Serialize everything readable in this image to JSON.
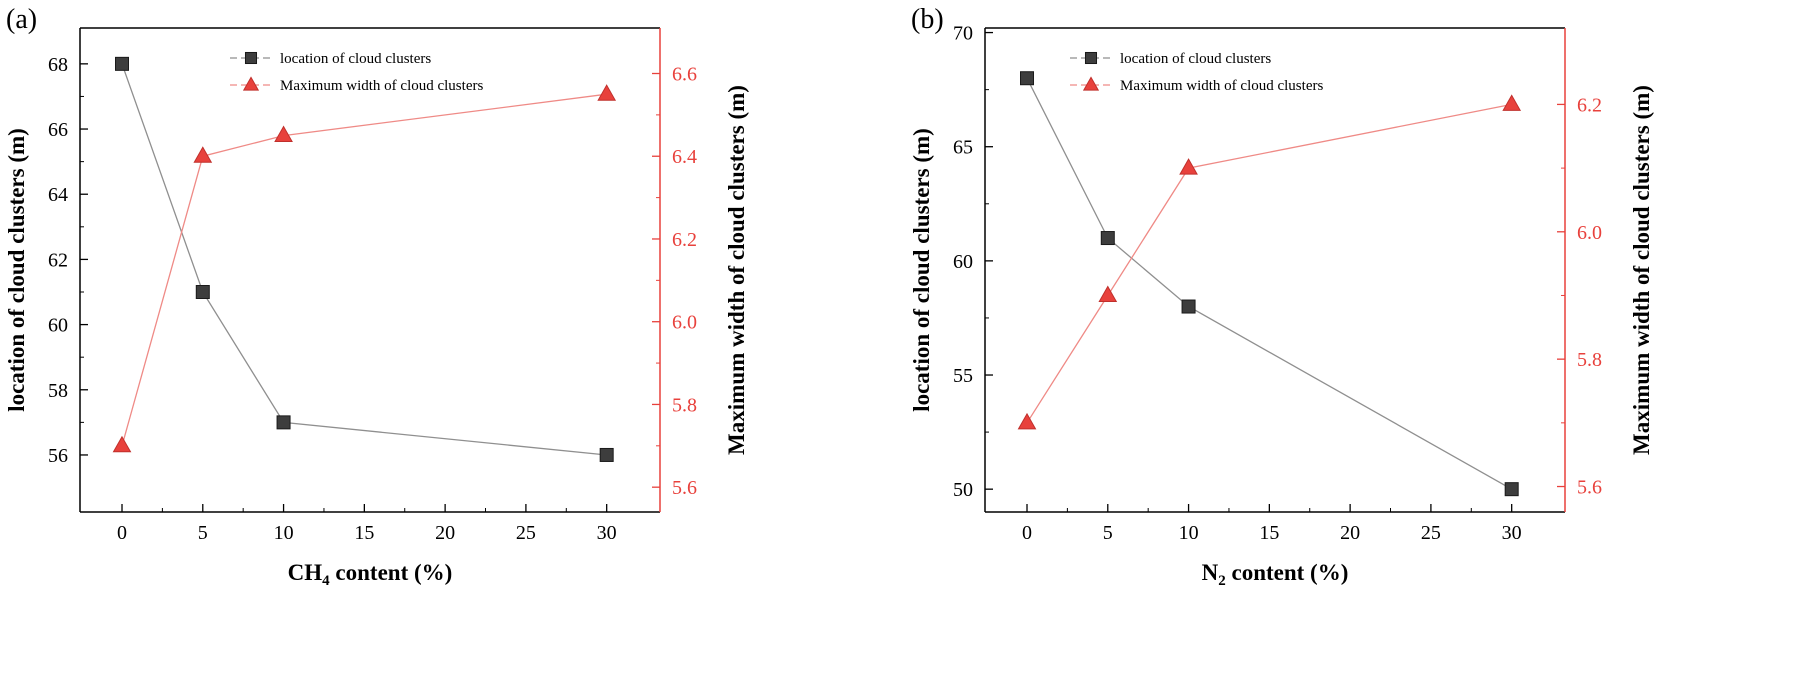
{
  "figure": {
    "background": "#ffffff",
    "series_black": "#3d3d3d",
    "series_red": "#e8413c"
  },
  "chart_data": [
    {
      "type": "line",
      "panel_label": "(a)",
      "x": [
        0,
        5,
        10,
        30
      ],
      "x_ticks": [
        0,
        5,
        10,
        15,
        20,
        25,
        30
      ],
      "xlim": [
        -2.6,
        33.3
      ],
      "xlabel": {
        "base": "CH",
        "sub": "4",
        "rest": " content (%)"
      },
      "grid": false,
      "legend_position": "top-center",
      "axes": {
        "left": {
          "label": "location of cloud clusters (m)",
          "ticks": [
            56,
            58,
            60,
            62,
            64,
            66,
            68
          ],
          "lim": [
            54.25,
            69.1
          ],
          "decimals": 0,
          "color": "#000000"
        },
        "right": {
          "label": "Maximum width of cloud clusters (m)",
          "ticks": [
            5.6,
            5.8,
            6.0,
            6.2,
            6.4,
            6.6
          ],
          "lim": [
            5.54,
            6.71
          ],
          "decimals": 1,
          "color": "#e8413c"
        }
      },
      "series": [
        {
          "name": "location of cloud clusters",
          "axis": "left",
          "marker": "square",
          "marker_color": "#3d3d3d",
          "marker_edge": "#1a1a1a",
          "line_color": "#8f8f8f",
          "values": [
            68,
            61,
            57,
            56
          ]
        },
        {
          "name": "Maximum width of cloud clusters",
          "axis": "right",
          "marker": "triangle",
          "marker_color": "#e8413c",
          "marker_edge": "#c0302c",
          "line_color": "#ef8a86",
          "values": [
            5.7,
            6.4,
            6.45,
            6.55
          ]
        }
      ]
    },
    {
      "type": "line",
      "panel_label": "(b)",
      "x": [
        0,
        5,
        10,
        30
      ],
      "x_ticks": [
        0,
        5,
        10,
        15,
        20,
        25,
        30
      ],
      "xlim": [
        -2.6,
        33.3
      ],
      "xlabel": {
        "base": "N",
        "sub": "2",
        "rest": " content (%)"
      },
      "grid": false,
      "legend_position": "top-center",
      "axes": {
        "left": {
          "label": "location of cloud clusters (m)",
          "ticks": [
            50,
            55,
            60,
            65,
            70
          ],
          "lim": [
            49.0,
            70.2
          ],
          "decimals": 0,
          "color": "#000000"
        },
        "right": {
          "label": "Maximum width of cloud clusters (m)",
          "ticks": [
            5.6,
            5.8,
            6.0,
            6.2
          ],
          "lim": [
            5.56,
            6.32
          ],
          "decimals": 1,
          "color": "#e8413c"
        }
      },
      "series": [
        {
          "name": "location of cloud clusters",
          "axis": "left",
          "marker": "square",
          "marker_color": "#3d3d3d",
          "marker_edge": "#1a1a1a",
          "line_color": "#8f8f8f",
          "values": [
            68,
            61,
            58,
            50
          ]
        },
        {
          "name": "Maximum width of cloud clusters",
          "axis": "right",
          "marker": "triangle",
          "marker_color": "#e8413c",
          "marker_edge": "#c0302c",
          "line_color": "#ef8a86",
          "values": [
            5.7,
            5.9,
            6.1,
            6.2
          ]
        }
      ]
    }
  ]
}
